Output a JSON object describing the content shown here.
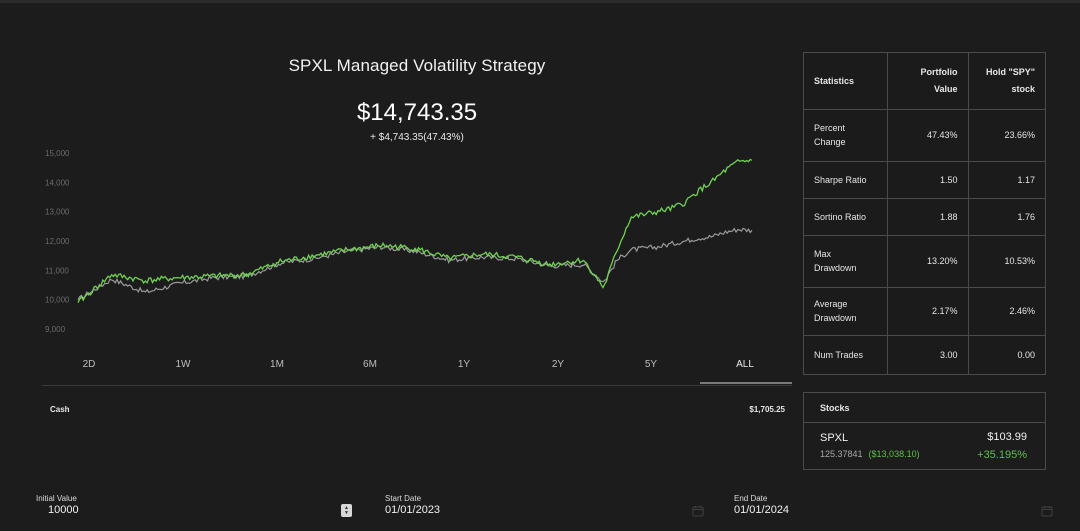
{
  "chart": {
    "title": "SPXL Managed Volatility Strategy",
    "current_value": "$14,743.35",
    "change": "+ $4,743.35(47.43%)",
    "y_ticks": [
      "15,000",
      "14,000",
      "13,000",
      "12,000",
      "11,000",
      "10,000",
      "9,000"
    ],
    "colors": {
      "strategy": "#6fd24f",
      "benchmark": "#9a9a9a"
    }
  },
  "chart_data": {
    "type": "line",
    "title": "SPXL Managed Volatility Strategy",
    "ylim": [
      9000,
      15000
    ],
    "y_ticks": [
      9000,
      10000,
      11000,
      12000,
      13000,
      14000,
      15000
    ],
    "x": [
      0,
      0.05,
      0.1,
      0.15,
      0.2,
      0.25,
      0.3,
      0.35,
      0.4,
      0.45,
      0.5,
      0.55,
      0.6,
      0.65,
      0.7,
      0.75,
      0.78,
      0.8,
      0.82,
      0.84,
      0.86,
      0.88,
      0.9,
      0.92,
      0.94,
      0.96,
      0.98,
      1.0
    ],
    "series": [
      {
        "name": "Portfolio Value",
        "values": [
          9900,
          10850,
          10650,
          10750,
          10800,
          10850,
          11300,
          11500,
          11700,
          11850,
          11750,
          11400,
          11550,
          11450,
          11200,
          11350,
          10400,
          11700,
          12800,
          12900,
          13000,
          13100,
          13300,
          13700,
          14000,
          14400,
          14700,
          14750
        ]
      },
      {
        "name": "Hold \"SPY\" stock",
        "values": [
          10000,
          10700,
          10250,
          10550,
          10750,
          10800,
          11250,
          11400,
          11650,
          11800,
          11650,
          11350,
          11450,
          11400,
          11150,
          11200,
          10600,
          11350,
          11700,
          11750,
          11800,
          11900,
          12000,
          12100,
          12150,
          12300,
          12400,
          12365
        ]
      }
    ]
  },
  "ranges": [
    "2D",
    "1W",
    "1M",
    "6M",
    "1Y",
    "2Y",
    "5Y",
    "ALL"
  ],
  "active_range": "ALL",
  "cash": {
    "label": "Cash",
    "value": "$1,705.25"
  },
  "statistics": {
    "headers": [
      "Statistics",
      "Portfolio Value",
      "Hold \"SPY\" stock"
    ],
    "header_parts": {
      "portfolio": [
        "Portfolio",
        "Value"
      ],
      "hold": [
        "Hold \"SPY\"",
        "stock"
      ]
    },
    "rows": [
      {
        "label": [
          "Percent",
          "Change"
        ],
        "portfolio": "47.43%",
        "hold": "23.66%"
      },
      {
        "label": [
          "Sharpe Ratio"
        ],
        "portfolio": "1.50",
        "hold": "1.17"
      },
      {
        "label": [
          "Sortino Ratio"
        ],
        "portfolio": "1.88",
        "hold": "1.76"
      },
      {
        "label": [
          "Max",
          "Drawdown"
        ],
        "portfolio": "13.20%",
        "hold": "10.53%"
      },
      {
        "label": [
          "Average",
          "Drawdown"
        ],
        "portfolio": "2.17%",
        "hold": "2.46%"
      },
      {
        "label": [
          "Num Trades"
        ],
        "portfolio": "3.00",
        "hold": "0.00"
      }
    ]
  },
  "stocks": {
    "title": "Stocks",
    "items": [
      {
        "symbol": "SPXL",
        "shares": "125.37841",
        "value": "($13,038.10)",
        "price": "$103.99",
        "change": "+35.195%"
      }
    ]
  },
  "inputs": {
    "initial_value": {
      "label": "Initial Value",
      "value": "10000"
    },
    "start_date": {
      "label": "Start Date",
      "value": "01/01/2023"
    },
    "end_date": {
      "label": "End Date",
      "value": "01/01/2024"
    }
  }
}
